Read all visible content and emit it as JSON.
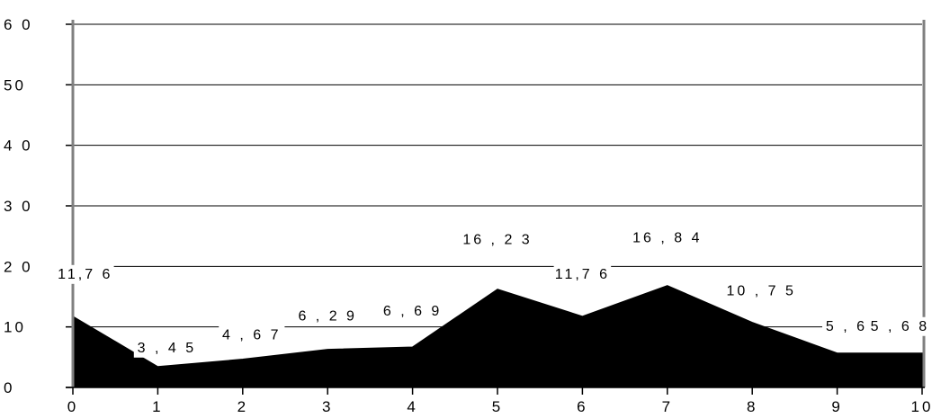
{
  "chart_data": {
    "type": "area",
    "title": "",
    "xlabel": "",
    "ylabel": "",
    "x": [
      0,
      1,
      2,
      3,
      4,
      5,
      6,
      7,
      8,
      9,
      10
    ],
    "x_tick_labels": [
      "0",
      "1",
      "2",
      "3",
      "4",
      "5",
      "6",
      "7",
      "8",
      "9",
      "10"
    ],
    "y_tick_values": [
      0,
      10,
      20,
      30,
      40,
      50,
      60
    ],
    "y_tick_labels": [
      "0",
      "10",
      "2 0",
      "3 0",
      "4 0",
      "50",
      "6 0"
    ],
    "ylim": [
      0,
      60
    ],
    "xlim": [
      0,
      10
    ],
    "grid": "horizontal",
    "series": [
      {
        "values": [
          11.76,
          3.45,
          4.67,
          6.29,
          6.69,
          16.23,
          11.76,
          16.84,
          10.75,
          5.68,
          5.68
        ],
        "color": "#000000"
      }
    ],
    "data_labels": [
      "11,7 6",
      "3 , 4 5",
      "4 , 6 7",
      "6 , 2 9",
      "6 , 6 9",
      "16 , 2 3",
      "11,7 6",
      "16 , 8 4",
      "10 , 7 5",
      "5 , 6 8",
      "5 , 6 8"
    ]
  }
}
